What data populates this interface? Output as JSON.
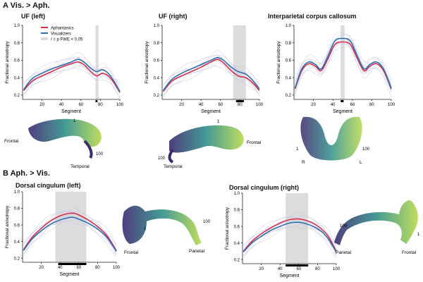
{
  "sections": {
    "a": "A Vis. > Aph.",
    "b": "B Aph. > Vis."
  },
  "legend": {
    "aphantasics": "Aphantasics",
    "visualizers": "Visualizers",
    "fwe": "/ = p FWE < 0.05"
  },
  "colors": {
    "aphantasics": "#d62d4a",
    "visualizers": "#2f6fb0",
    "individual_lines": "#c8c6e2",
    "shade": "#dcdcdc",
    "sig_bar": "#000000",
    "tract_low": "#3b2a6e",
    "tract_mid": "#2f8f8a",
    "tract_high": "#b8d94a"
  },
  "icons": {
    "tract_renderings": "fiber-tractography-image"
  },
  "tract_labels": {
    "uf_left": {
      "one": "1",
      "frontal": "Frontal",
      "hundred": "100",
      "temporal": "Temporal"
    },
    "uf_right": {
      "one": "1",
      "frontal": "Frontal",
      "hundred": "100",
      "temporal": "Temporal"
    },
    "cc": {
      "one": "1",
      "hundred": "100",
      "r": "R",
      "l": "L"
    },
    "cing_left": {
      "one": "1",
      "hundred": "100",
      "frontal": "Frontal",
      "parietal": "Parietal"
    },
    "cing_right": {
      "one": "1",
      "hundred": "100",
      "frontal": "Frontal",
      "parietal": "Parietal"
    }
  },
  "chart_data": [
    {
      "id": "uf_left",
      "type": "line",
      "title": "UF (left)",
      "xlabel": "Segment",
      "ylabel": "Fractional anisotropy",
      "xlim": [
        0,
        100
      ],
      "ylim": [
        0.15,
        1.0
      ],
      "xticks": [
        20,
        40,
        60,
        80,
        100
      ],
      "yticks": [
        0.2,
        0.4,
        0.6,
        0.8,
        1.0
      ],
      "shade": [
        75,
        78
      ],
      "sig": [
        75,
        77
      ],
      "x": [
        1,
        10,
        20,
        30,
        40,
        50,
        57,
        63,
        70,
        76,
        82,
        88,
        94,
        100
      ],
      "series": [
        {
          "name": "Aphantasics",
          "values": [
            0.25,
            0.36,
            0.42,
            0.47,
            0.52,
            0.56,
            0.58,
            0.55,
            0.47,
            0.42,
            0.45,
            0.42,
            0.34,
            0.23
          ]
        },
        {
          "name": "Visualizers",
          "values": [
            0.26,
            0.39,
            0.45,
            0.5,
            0.54,
            0.58,
            0.61,
            0.58,
            0.51,
            0.47,
            0.49,
            0.45,
            0.36,
            0.24
          ]
        }
      ]
    },
    {
      "id": "uf_right",
      "type": "line",
      "title": "UF (right)",
      "xlabel": "Segment",
      "ylabel": "Fractional anisotropy",
      "xlim": [
        0,
        100
      ],
      "ylim": [
        0.15,
        1.0
      ],
      "xticks": [
        20,
        40,
        60,
        80,
        100
      ],
      "yticks": [
        0.2,
        0.4,
        0.6,
        0.8,
        1.0
      ],
      "shade": [
        73,
        86
      ],
      "sig": [
        76,
        84
      ],
      "x": [
        1,
        10,
        20,
        30,
        40,
        50,
        57,
        63,
        70,
        78,
        86,
        93,
        100
      ],
      "series": [
        {
          "name": "Aphantasics",
          "values": [
            0.24,
            0.36,
            0.42,
            0.47,
            0.52,
            0.58,
            0.61,
            0.57,
            0.49,
            0.42,
            0.4,
            0.34,
            0.25
          ]
        },
        {
          "name": "Visualizers",
          "values": [
            0.25,
            0.38,
            0.45,
            0.5,
            0.55,
            0.6,
            0.63,
            0.6,
            0.53,
            0.47,
            0.44,
            0.37,
            0.27
          ]
        }
      ]
    },
    {
      "id": "cc",
      "type": "line",
      "title": "Interparietal corpus callosum",
      "xlabel": "Segment",
      "ylabel": "Fractional anisotropy",
      "xlim": [
        0,
        100
      ],
      "ylim": [
        0.15,
        1.0
      ],
      "xticks": [
        20,
        40,
        60,
        80,
        100
      ],
      "yticks": [
        0.2,
        0.4,
        0.6,
        0.8,
        1.0
      ],
      "shade": [
        48,
        52
      ],
      "sig": [
        48,
        51
      ],
      "x": [
        1,
        8,
        15,
        22,
        28,
        35,
        42,
        50,
        58,
        65,
        72,
        78,
        85,
        92,
        100
      ],
      "series": [
        {
          "name": "Aphantasics",
          "values": [
            0.27,
            0.48,
            0.56,
            0.53,
            0.48,
            0.62,
            0.78,
            0.81,
            0.78,
            0.62,
            0.48,
            0.53,
            0.56,
            0.48,
            0.27
          ]
        },
        {
          "name": "Visualizers",
          "values": [
            0.28,
            0.5,
            0.58,
            0.55,
            0.5,
            0.65,
            0.82,
            0.85,
            0.82,
            0.65,
            0.5,
            0.55,
            0.58,
            0.5,
            0.28
          ]
        }
      ]
    },
    {
      "id": "cing_left",
      "type": "line",
      "title": "Dorsal cingulum (left)",
      "xlabel": "Segment",
      "ylabel": "Fractional anisotropy",
      "xlim": [
        0,
        100
      ],
      "ylim": [
        0.15,
        1.0
      ],
      "xticks": [
        20,
        40,
        60,
        80,
        100
      ],
      "yticks": [
        0.2,
        0.4,
        0.6,
        0.8,
        1.0
      ],
      "shade": [
        35,
        68
      ],
      "sig": [
        38,
        68
      ],
      "x": [
        1,
        10,
        20,
        30,
        40,
        50,
        55,
        60,
        70,
        80,
        90,
        100
      ],
      "series": [
        {
          "name": "Aphantasics",
          "values": [
            0.3,
            0.45,
            0.56,
            0.65,
            0.71,
            0.74,
            0.74,
            0.72,
            0.66,
            0.58,
            0.47,
            0.29
          ]
        },
        {
          "name": "Visualizers",
          "values": [
            0.29,
            0.43,
            0.53,
            0.61,
            0.66,
            0.69,
            0.69,
            0.67,
            0.62,
            0.55,
            0.45,
            0.28
          ]
        }
      ]
    },
    {
      "id": "cing_right",
      "type": "line",
      "title": "Dorsal cingulum (right)",
      "xlabel": "Segment",
      "ylabel": "Fractional anisotropy",
      "xlim": [
        0,
        100
      ],
      "ylim": [
        0.15,
        1.0
      ],
      "xticks": [
        20,
        40,
        60,
        80,
        100
      ],
      "yticks": [
        0.2,
        0.4,
        0.6,
        0.8,
        1.0
      ],
      "shade": [
        46,
        70
      ],
      "sig": [
        46,
        70
      ],
      "x": [
        1,
        10,
        20,
        30,
        40,
        50,
        58,
        65,
        75,
        85,
        92,
        100
      ],
      "series": [
        {
          "name": "Aphantasics",
          "values": [
            0.3,
            0.42,
            0.51,
            0.58,
            0.64,
            0.68,
            0.69,
            0.68,
            0.64,
            0.56,
            0.47,
            0.3
          ]
        },
        {
          "name": "Visualizers",
          "values": [
            0.29,
            0.4,
            0.48,
            0.55,
            0.6,
            0.64,
            0.65,
            0.64,
            0.6,
            0.53,
            0.44,
            0.29
          ]
        }
      ]
    }
  ]
}
